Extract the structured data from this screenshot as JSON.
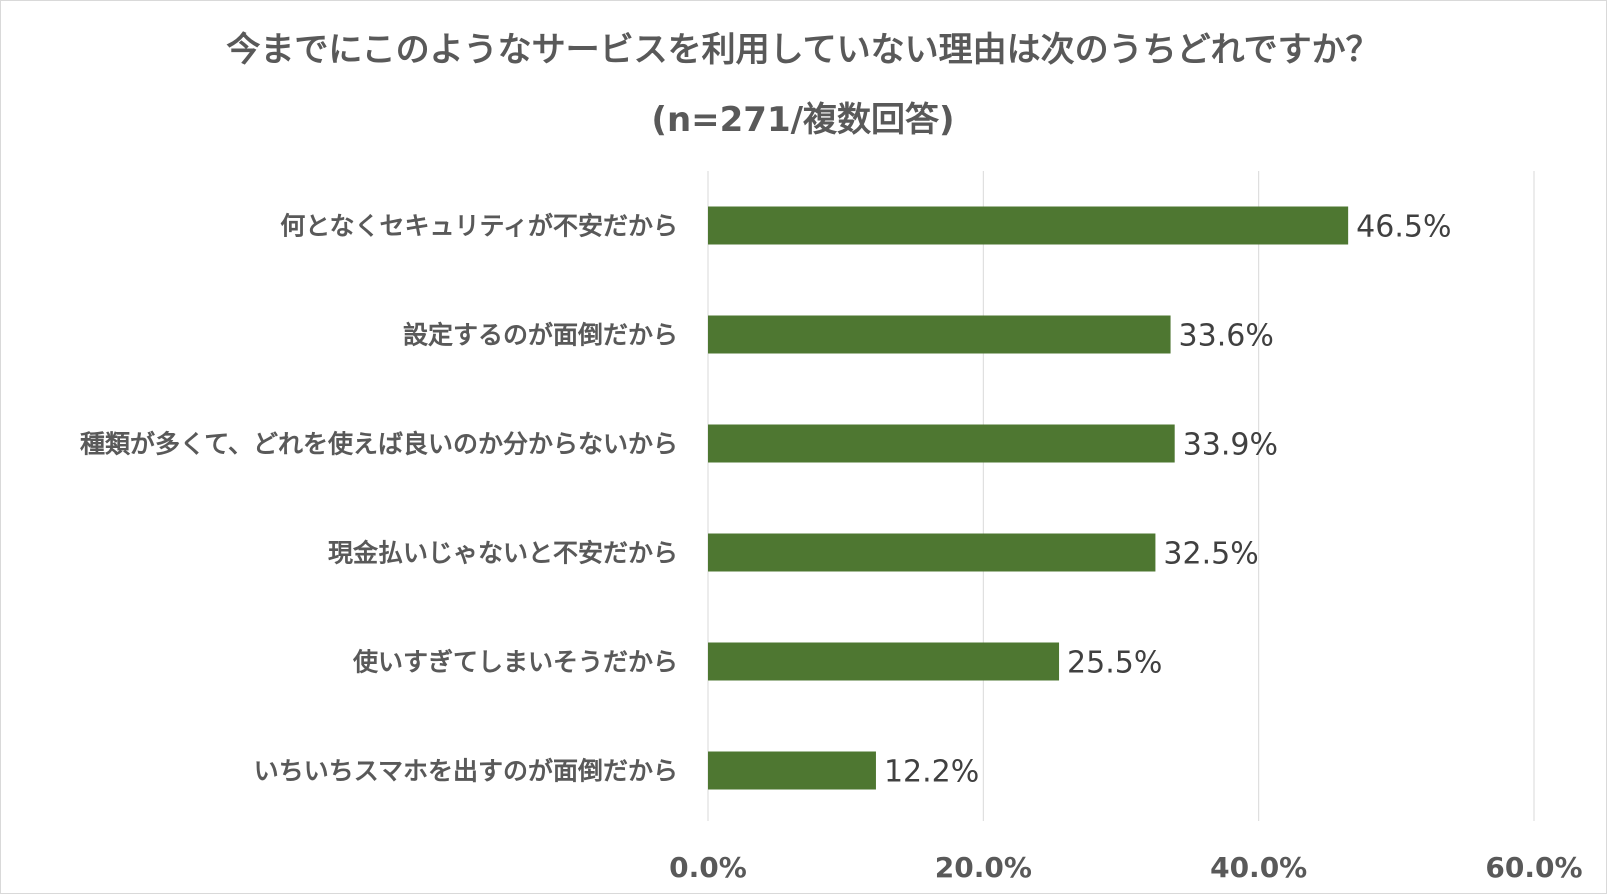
{
  "chart_data": {
    "type": "bar",
    "orientation": "horizontal",
    "title": "今までにこのようなサービスを利用していない理由は次のうちどれですか？",
    "subtitle": "(n=271/複数回答)",
    "categories": [
      "何となくセキュリティが不安だから",
      "設定するのが面倒だから",
      "種類が多くて、どれを使えば良いのか分からないから",
      "現金払いじゃないと不安だから",
      "使いすぎてしまいそうだから",
      "いちいちスマホを出すのが面倒だから"
    ],
    "values": [
      46.5,
      33.6,
      33.9,
      32.5,
      25.5,
      12.2
    ],
    "data_labels": [
      "46.5%",
      "33.6%",
      "33.9%",
      "32.5%",
      "25.5%",
      "12.2%"
    ],
    "x_ticks": [
      "0.0%",
      "20.0%",
      "40.0%",
      "60.0%"
    ],
    "x_tick_values": [
      0,
      20,
      40,
      60
    ],
    "xlim": [
      0,
      60
    ],
    "xlabel": "",
    "ylabel": "",
    "grid": "vertical",
    "legend": "none",
    "bar_color": "#4e7731"
  }
}
